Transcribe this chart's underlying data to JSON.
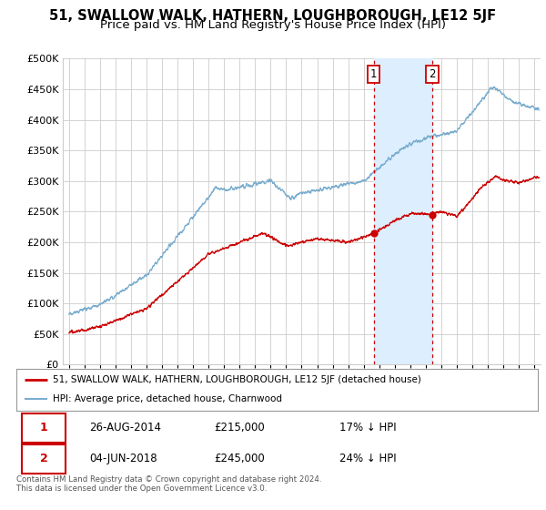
{
  "title": "51, SWALLOW WALK, HATHERN, LOUGHBOROUGH, LE12 5JF",
  "subtitle": "Price paid vs. HM Land Registry's House Price Index (HPI)",
  "ylim": [
    0,
    500000
  ],
  "yticks": [
    0,
    50000,
    100000,
    150000,
    200000,
    250000,
    300000,
    350000,
    400000,
    450000,
    500000
  ],
  "xlim_start": 1994.6,
  "xlim_end": 2025.4,
  "sale1_x": 2014.65,
  "sale1_y": 215000,
  "sale1_label": "1",
  "sale2_x": 2018.42,
  "sale2_y": 245000,
  "sale2_label": "2",
  "red_color": "#cc0000",
  "blue_color": "#7aadcf",
  "shade_color": "#ddeeff",
  "bg_color": "#ffffff",
  "grid_color": "#cccccc",
  "vline_color": "#cc0000",
  "legend_line1": "51, SWALLOW WALK, HATHERN, LOUGHBOROUGH, LE12 5JF (detached house)",
  "legend_line2": "HPI: Average price, detached house, Charnwood",
  "table_row1": [
    "1",
    "26-AUG-2014",
    "£215,000",
    "17% ↓ HPI"
  ],
  "table_row2": [
    "2",
    "04-JUN-2018",
    "£245,000",
    "24% ↓ HPI"
  ],
  "footnote": "Contains HM Land Registry data © Crown copyright and database right 2024.\nThis data is licensed under the Open Government Licence v3.0.",
  "title_fontsize": 10.5,
  "subtitle_fontsize": 9.5
}
